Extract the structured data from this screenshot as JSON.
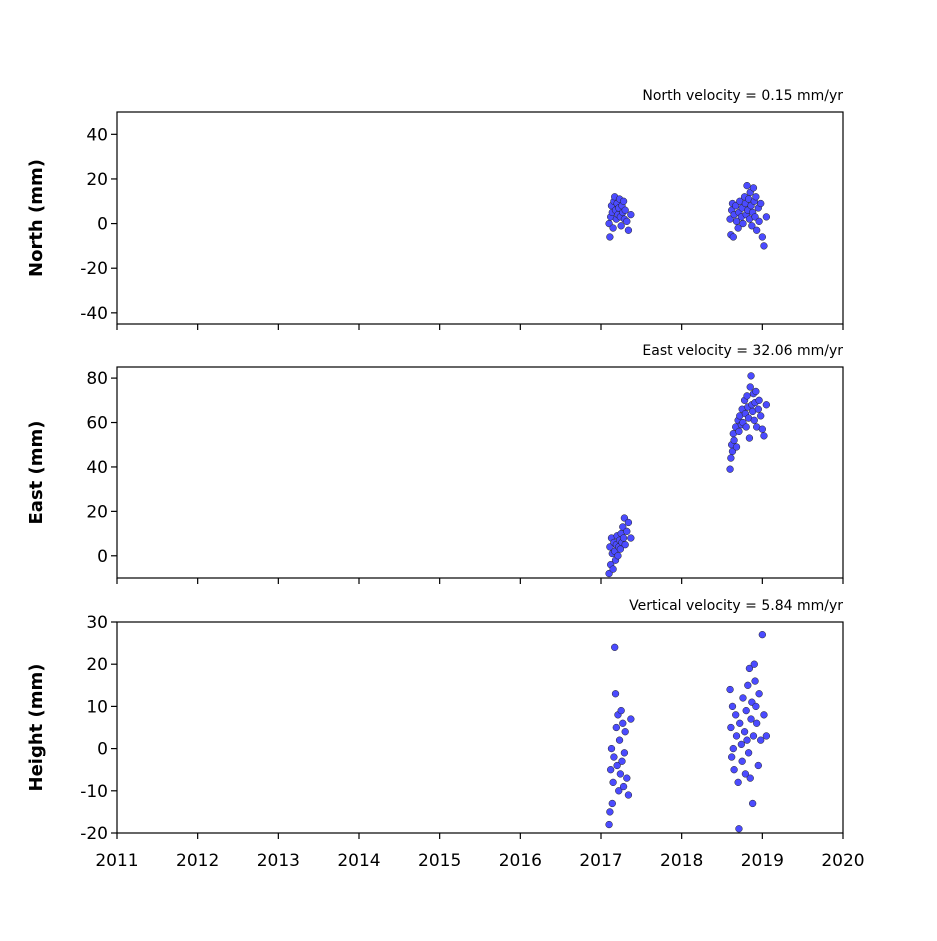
{
  "chart_data": [
    {
      "type": "scatter",
      "title": "North velocity = 0.15 mm/yr",
      "y_label": "North (mm)",
      "color": "#4b4bff",
      "xlim": [
        2011,
        2020
      ],
      "xticks": [
        2011,
        2012,
        2013,
        2014,
        2015,
        2016,
        2017,
        2018,
        2019,
        2020
      ],
      "ylim": [
        -45,
        50
      ],
      "yticks": [
        -40,
        -20,
        0,
        20,
        40
      ],
      "x": [
        2017.1,
        2017.11,
        2017.12,
        2017.13,
        2017.14,
        2017.15,
        2017.16,
        2017.17,
        2017.18,
        2017.19,
        2017.2,
        2017.21,
        2017.22,
        2017.23,
        2017.24,
        2017.25,
        2017.26,
        2017.27,
        2017.28,
        2017.29,
        2017.3,
        2017.32,
        2017.34,
        2017.37,
        2018.6,
        2018.61,
        2018.62,
        2018.63,
        2018.64,
        2018.65,
        2018.67,
        2018.68,
        2018.7,
        2018.71,
        2018.72,
        2018.74,
        2018.75,
        2018.76,
        2018.78,
        2018.79,
        2018.8,
        2018.81,
        2018.82,
        2018.83,
        2018.84,
        2018.85,
        2018.86,
        2018.87,
        2018.88,
        2018.89,
        2018.9,
        2018.91,
        2018.92,
        2018.93,
        2018.95,
        2018.96,
        2018.98,
        2019.0,
        2019.02,
        2019.05
      ],
      "values": [
        0,
        -6,
        3,
        8,
        5,
        -2,
        10,
        12,
        6,
        2,
        9,
        4,
        7,
        11,
        3,
        -1,
        8,
        5,
        10,
        2,
        6,
        1,
        -3,
        4,
        2,
        -5,
        6,
        9,
        -6,
        4,
        8,
        1,
        -2,
        5,
        10,
        3,
        7,
        0,
        12,
        9,
        4,
        17,
        6,
        11,
        2,
        14,
        8,
        -1,
        5,
        16,
        10,
        3,
        12,
        -3,
        7,
        1,
        9,
        -6,
        -10,
        3
      ]
    },
    {
      "type": "scatter",
      "title": "East velocity = 32.06 mm/yr",
      "y_label": "East (mm)",
      "color": "#4b4bff",
      "xlim": [
        2011,
        2020
      ],
      "xticks": [
        2011,
        2012,
        2013,
        2014,
        2015,
        2016,
        2017,
        2018,
        2019,
        2020
      ],
      "ylim": [
        -10,
        85
      ],
      "yticks": [
        0,
        20,
        40,
        60,
        80
      ],
      "x": [
        2017.1,
        2017.11,
        2017.12,
        2017.13,
        2017.14,
        2017.15,
        2017.16,
        2017.17,
        2017.18,
        2017.19,
        2017.2,
        2017.21,
        2017.22,
        2017.23,
        2017.24,
        2017.25,
        2017.26,
        2017.27,
        2017.28,
        2017.29,
        2017.3,
        2017.32,
        2017.34,
        2017.37,
        2018.6,
        2018.61,
        2018.62,
        2018.63,
        2018.64,
        2018.65,
        2018.67,
        2018.68,
        2018.7,
        2018.71,
        2018.72,
        2018.74,
        2018.75,
        2018.76,
        2018.78,
        2018.79,
        2018.8,
        2018.81,
        2018.82,
        2018.83,
        2018.84,
        2018.85,
        2018.86,
        2018.87,
        2018.88,
        2018.89,
        2018.9,
        2018.91,
        2018.92,
        2018.93,
        2018.95,
        2018.96,
        2018.98,
        2019.0,
        2019.02,
        2019.05
      ],
      "values": [
        -8,
        4,
        -4,
        8,
        1,
        -6,
        6,
        2,
        -2,
        5,
        9,
        0,
        4,
        7,
        3,
        10,
        6,
        13,
        8,
        17,
        5,
        11,
        15,
        8,
        39,
        44,
        50,
        47,
        55,
        52,
        58,
        49,
        61,
        56,
        63,
        59,
        66,
        60,
        70,
        64,
        58,
        72,
        67,
        62,
        53,
        76,
        81,
        68,
        65,
        73,
        61,
        69,
        74,
        58,
        66,
        70,
        63,
        57,
        54,
        68
      ]
    },
    {
      "type": "scatter",
      "title": "Vertical velocity = 5.84 mm/yr",
      "y_label": "Height (mm)",
      "color": "#4b4bff",
      "xlim": [
        2011,
        2020
      ],
      "xticks": [
        2011,
        2012,
        2013,
        2014,
        2015,
        2016,
        2017,
        2018,
        2019,
        2020
      ],
      "ylim": [
        -20,
        30
      ],
      "yticks": [
        -20,
        -10,
        0,
        10,
        20,
        30
      ],
      "x": [
        2017.1,
        2017.11,
        2017.12,
        2017.13,
        2017.14,
        2017.15,
        2017.16,
        2017.17,
        2017.18,
        2017.19,
        2017.2,
        2017.21,
        2017.22,
        2017.23,
        2017.24,
        2017.25,
        2017.26,
        2017.27,
        2017.28,
        2017.29,
        2017.3,
        2017.32,
        2017.34,
        2017.37,
        2018.6,
        2018.61,
        2018.62,
        2018.63,
        2018.64,
        2018.65,
        2018.67,
        2018.68,
        2018.7,
        2018.71,
        2018.72,
        2018.74,
        2018.75,
        2018.76,
        2018.78,
        2018.79,
        2018.8,
        2018.81,
        2018.82,
        2018.83,
        2018.84,
        2018.85,
        2018.86,
        2018.87,
        2018.88,
        2018.89,
        2018.9,
        2018.91,
        2018.92,
        2018.93,
        2018.95,
        2018.96,
        2018.98,
        2019.0,
        2019.02,
        2019.05
      ],
      "values": [
        -18,
        -15,
        -5,
        0,
        -13,
        -8,
        -2,
        24,
        13,
        5,
        -4,
        8,
        -10,
        2,
        -6,
        9,
        -3,
        6,
        -9,
        -1,
        4,
        -7,
        -11,
        7,
        14,
        5,
        -2,
        10,
        0,
        -5,
        8,
        3,
        -8,
        -19,
        6,
        1,
        -3,
        12,
        4,
        -6,
        9,
        2,
        15,
        -1,
        19,
        -7,
        7,
        11,
        -13,
        3,
        20,
        16,
        10,
        6,
        -4,
        13,
        2,
        27,
        8,
        3
      ]
    }
  ]
}
